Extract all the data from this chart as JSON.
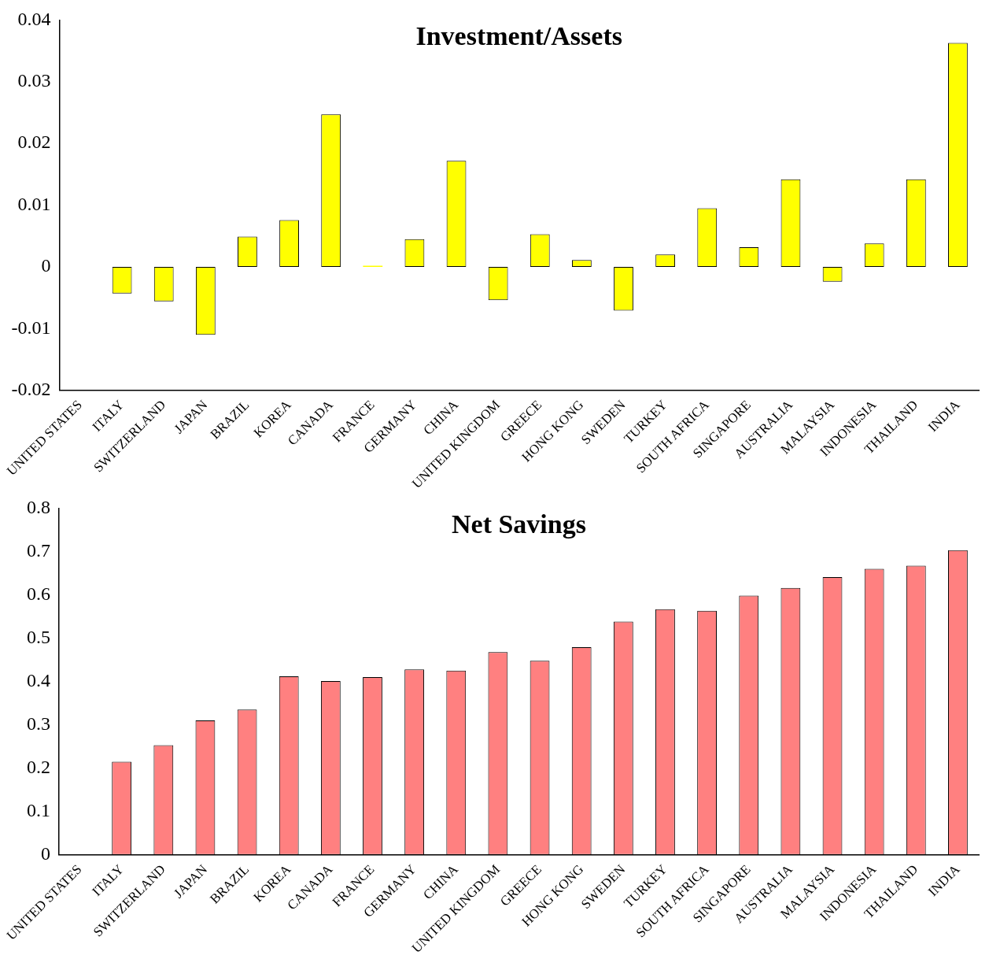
{
  "chart_data": [
    {
      "type": "bar",
      "title": "Investment/Assets",
      "categories": [
        "UNITED STATES",
        "ITALY",
        "SWITZERLAND",
        "JAPAN",
        "BRAZIL",
        "KOREA",
        "CANADA",
        "FRANCE",
        "GERMANY",
        "CHINA",
        "UNITED KINGDOM",
        "GREECE",
        "HONG KONG",
        "SWEDEN",
        "TURKEY",
        "SOUTH AFRICA",
        "SINGAPORE",
        "AUSTRALIA",
        "MALAYSIA",
        "INDONESIA",
        "THAILAND",
        "INDIA"
      ],
      "values": [
        null,
        -0.0043,
        -0.0056,
        -0.011,
        0.0049,
        0.0076,
        0.0247,
        0.0002,
        0.0045,
        0.0172,
        -0.0054,
        0.0053,
        0.0011,
        -0.0071,
        0.002,
        0.0095,
        0.0032,
        0.0142,
        -0.0024,
        0.0038,
        0.0142,
        0.0363
      ],
      "color": "#ffff00",
      "ylim": [
        -0.02,
        0.04
      ],
      "yticks": [
        -0.02,
        -0.01,
        0,
        0.01,
        0.02,
        0.03,
        0.04
      ],
      "grid": false,
      "legend": false
    },
    {
      "type": "bar",
      "title": "Net Savings",
      "categories": [
        "UNITED STATES",
        "ITALY",
        "SWITZERLAND",
        "JAPAN",
        "BRAZIL",
        "KOREA",
        "CANADA",
        "FRANCE",
        "GERMANY",
        "CHINA",
        "UNITED KINGDOM",
        "GREECE",
        "HONG KONG",
        "SWEDEN",
        "TURKEY",
        "SOUTH AFRICA",
        "SINGAPORE",
        "AUSTRALIA",
        "MALAYSIA",
        "INDONESIA",
        "THAILAND",
        "INDIA"
      ],
      "values": [
        null,
        0.215,
        0.253,
        0.31,
        0.335,
        0.412,
        0.401,
        0.41,
        0.428,
        0.425,
        0.468,
        0.448,
        0.479,
        0.538,
        0.567,
        0.563,
        0.598,
        0.616,
        0.641,
        0.66,
        0.667,
        0.703
      ],
      "color": "#ff8080",
      "ylim": [
        0,
        0.8
      ],
      "yticks": [
        0,
        0.1,
        0.2,
        0.3,
        0.4,
        0.5,
        0.6,
        0.7,
        0.8
      ],
      "grid": false,
      "legend": false
    }
  ]
}
